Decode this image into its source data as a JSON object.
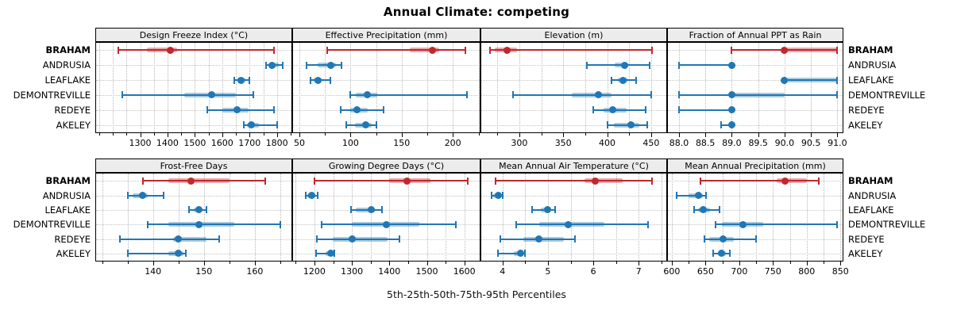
{
  "title": "Annual Climate: competing",
  "caption": "5th-25th-50th-75th-95th Percentiles",
  "percentile_labels": [
    "5th",
    "25th",
    "50th",
    "75th",
    "95th"
  ],
  "categories": [
    "BRAHAM",
    "ANDRUSIA",
    "LEAFLAKE",
    "DEMONTREVILLE",
    "REDEYE",
    "AKELEY"
  ],
  "highlighted_category": "BRAHAM",
  "colors": {
    "highlight": "#c1272d",
    "normal": "#2077b4",
    "strip_bg": "#ececec",
    "grid": "#bdbdbd",
    "border": "#000000"
  },
  "chart_data": [
    {
      "type": "dotplot",
      "id": "design-freeze-index",
      "title": "Design Freeze Index (°C)",
      "row": 0,
      "col": 0,
      "axis": {
        "min": 1139,
        "max": 1853,
        "grid_step": 50,
        "tick_values": [
          1300,
          1400,
          1500,
          1600,
          1700,
          1800
        ],
        "tick_labels": [
          "1300",
          "1400",
          "1500",
          "1600",
          "1700",
          "1800"
        ]
      },
      "series": {
        "BRAHAM": [
          1220,
          1325,
          1410,
          1435,
          1790
        ],
        "ANDRUSIA": [
          1760,
          1772,
          1781,
          1806,
          1820
        ],
        "LEAFLAKE": [
          1645,
          1655,
          1670,
          1685,
          1700
        ],
        "DEMONTREVILLE": [
          1235,
          1460,
          1560,
          1650,
          1715
        ],
        "REDEYE": [
          1545,
          1600,
          1655,
          1695,
          1790
        ],
        "AKELEY": [
          1680,
          1690,
          1705,
          1735,
          1800
        ]
      }
    },
    {
      "type": "dotplot",
      "id": "effective-precipitation",
      "title": "Effective Precipitation (mm)",
      "row": 0,
      "col": 1,
      "axis": {
        "min": 43.8,
        "max": 226.2,
        "grid_step": 25,
        "tick_values": [
          50,
          100,
          150,
          200
        ],
        "tick_labels": [
          "50",
          "100",
          "150",
          "200"
        ]
      },
      "series": {
        "BRAHAM": [
          77,
          158,
          180,
          187,
          212
        ],
        "ANDRUSIA": [
          57,
          68,
          81,
          86,
          91
        ],
        "LEAFLAKE": [
          61,
          64,
          68,
          72,
          80
        ],
        "DEMONTREVILLE": [
          100,
          105,
          116,
          126,
          214
        ],
        "REDEYE": [
          90,
          100,
          106,
          117,
          132
        ],
        "AKELEY": [
          96,
          104,
          115,
          121,
          125
        ]
      }
    },
    {
      "type": "dotplot",
      "id": "elevation",
      "title": "Elevation (m)",
      "row": 0,
      "col": 2,
      "axis": {
        "min": 256.7,
        "max": 467.3,
        "grid_step": 25,
        "tick_values": [
          300,
          350,
          400,
          450
        ],
        "tick_labels": [
          "300",
          "350",
          "400",
          "450"
        ]
      },
      "series": {
        "BRAHAM": [
          267,
          272,
          286,
          297,
          451
        ],
        "ANDRUSIA": [
          377,
          409,
          420,
          424,
          448
        ],
        "LEAFLAKE": [
          405,
          412,
          418,
          423,
          433
        ],
        "DEMONTREVILLE": [
          293,
          360,
          390,
          405,
          450
        ],
        "REDEYE": [
          384,
          396,
          406,
          422,
          444
        ],
        "AKELEY": [
          400,
          408,
          427,
          437,
          446
        ]
      }
    },
    {
      "type": "dotplot",
      "id": "fraction-ppt-as-rain",
      "title": "Fraction of Annual PPT as Rain",
      "row": 0,
      "col": 3,
      "axis": {
        "min": 87.79,
        "max": 91.1,
        "grid_step": 0.5,
        "tick_values": [
          88.0,
          88.5,
          89.0,
          89.5,
          90.0,
          90.5,
          91.0
        ],
        "tick_labels": [
          "88.0",
          "88.5",
          "89.0",
          "89.5",
          "90.0",
          "90.5",
          "91.0"
        ]
      },
      "series": {
        "BRAHAM": [
          89,
          90,
          90,
          91,
          91
        ],
        "ANDRUSIA": [
          88,
          89,
          89,
          89,
          89
        ],
        "LEAFLAKE": [
          90,
          90,
          90,
          91,
          91
        ],
        "DEMONTREVILLE": [
          88,
          89,
          89,
          90,
          91
        ],
        "REDEYE": [
          88,
          89,
          89,
          89,
          89
        ],
        "AKELEY": [
          88.8,
          89,
          89,
          89,
          89
        ]
      }
    },
    {
      "type": "dotplot",
      "id": "frost-free-days",
      "title": "Frost-Free Days",
      "row": 1,
      "col": 0,
      "axis": {
        "min": 128.8,
        "max": 167.2,
        "grid_step": 5,
        "tick_values": [
          140,
          150,
          160
        ],
        "tick_labels": [
          "140",
          "150",
          "160"
        ]
      },
      "series": {
        "BRAHAM": [
          138,
          143,
          147.5,
          155,
          162
        ],
        "ANDRUSIA": [
          135,
          136,
          138,
          139,
          142
        ],
        "LEAFLAKE": [
          147,
          148,
          149,
          149.5,
          150.5
        ],
        "DEMONTREVILLE": [
          139,
          143,
          149,
          156,
          165
        ],
        "REDEYE": [
          133.5,
          144,
          145,
          150.5,
          153
        ],
        "AKELEY": [
          135,
          143,
          145,
          146,
          146.5
        ]
      }
    },
    {
      "type": "dotplot",
      "id": "growing-degree-days",
      "title": "Growing Degree Days (°C)",
      "row": 1,
      "col": 1,
      "axis": {
        "min": 1143,
        "max": 1641,
        "grid_step": 50,
        "tick_values": [
          1200,
          1300,
          1400,
          1500,
          1600
        ],
        "tick_labels": [
          "1200",
          "1300",
          "1400",
          "1500",
          "1600"
        ]
      },
      "series": {
        "BRAHAM": [
          1200,
          1400,
          1447,
          1510,
          1610
        ],
        "ANDRUSIA": [
          1177,
          1182,
          1192,
          1200,
          1208
        ],
        "LEAFLAKE": [
          1297,
          1310,
          1352,
          1362,
          1380
        ],
        "DEMONTREVILLE": [
          1220,
          1300,
          1393,
          1480,
          1578
        ],
        "REDEYE": [
          1207,
          1250,
          1300,
          1395,
          1428
        ],
        "AKELEY": [
          1205,
          1230,
          1243,
          1249,
          1253
        ]
      }
    },
    {
      "type": "dotplot",
      "id": "mean-annual-air-temperature",
      "title": "Mean Annual Air Temperature (°C)",
      "row": 1,
      "col": 2,
      "axis": {
        "min": 3.53,
        "max": 7.61,
        "grid_step": 0.5,
        "tick_values": [
          4,
          5,
          6,
          7
        ],
        "tick_labels": [
          "4",
          "5",
          "6",
          "7"
        ]
      },
      "series": {
        "BRAHAM": [
          3.85,
          5.8,
          6.05,
          6.65,
          7.3
        ],
        "ANDRUSIA": [
          3.75,
          3.8,
          3.9,
          3.95,
          4.0
        ],
        "LEAFLAKE": [
          4.65,
          4.85,
          5.0,
          5.05,
          5.15
        ],
        "DEMONTREVILLE": [
          4.3,
          4.8,
          5.45,
          6.25,
          7.2
        ],
        "REDEYE": [
          3.95,
          4.45,
          4.8,
          5.35,
          5.6
        ],
        "AKELEY": [
          3.9,
          4.25,
          4.4,
          4.45,
          4.5
        ]
      }
    },
    {
      "type": "dotplot",
      "id": "mean-annual-precipitation",
      "title": "Mean Annual Precipitation (mm)",
      "row": 1,
      "col": 3,
      "axis": {
        "min": 594.2,
        "max": 853.2,
        "grid_step": 25,
        "tick_values": [
          600,
          650,
          700,
          750,
          800,
          850
        ],
        "tick_labels": [
          "600",
          "650",
          "700",
          "750",
          "800",
          "850"
        ]
      },
      "series": {
        "BRAHAM": [
          642,
          755,
          768,
          800,
          818
        ],
        "ANDRUSIA": [
          607,
          625,
          640,
          646,
          651
        ],
        "LEAFLAKE": [
          633,
          639,
          647,
          657,
          671
        ],
        "DEMONTREVILLE": [
          665,
          674,
          705,
          735,
          845
        ],
        "REDEYE": [
          648,
          655,
          676,
          692,
          725
        ],
        "AKELEY": [
          661,
          668,
          674,
          680,
          686
        ]
      }
    }
  ]
}
